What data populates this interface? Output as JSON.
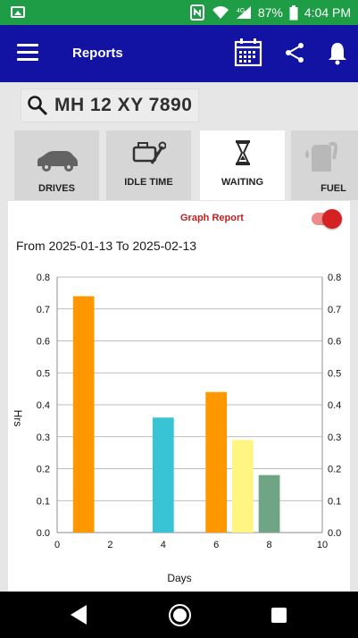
{
  "status_bar": {
    "battery_percent": "87%",
    "time": "4:04 PM",
    "bg_color": "#1f9c46"
  },
  "app_bar": {
    "title": "Reports",
    "bg_color": "#1212a3",
    "icons": [
      "menu-icon",
      "calendar-icon",
      "share-icon",
      "bell-icon"
    ]
  },
  "search": {
    "value": "MH 12 XY 7890"
  },
  "tabs": [
    {
      "label": "DRIVES",
      "icon": "car-icon",
      "active": false
    },
    {
      "label": "IDLE TIME",
      "icon": "engine-wrench-icon",
      "active": false
    },
    {
      "label": "WAITING",
      "icon": "hourglass-icon",
      "active": true
    },
    {
      "label": "FUEL",
      "icon": "fuel-pump-icon",
      "active": false
    }
  ],
  "graph_toggle": {
    "label": "Graph Report",
    "checked": true
  },
  "date_range": "From 2025-01-13 To 2025-02-13",
  "chart_data": {
    "type": "bar",
    "title": "",
    "xlabel": "Days",
    "ylabel": "Hrs",
    "xlim": [
      0,
      10
    ],
    "ylim": [
      0,
      0.8
    ],
    "x_ticks": [
      "0",
      "2",
      "4",
      "6",
      "8",
      "10"
    ],
    "y_ticks": [
      "0.0",
      "0.1",
      "0.2",
      "0.3",
      "0.4",
      "0.5",
      "0.6",
      "0.7",
      "0.8"
    ],
    "bars": [
      {
        "x": 1,
        "value": 0.74,
        "color": "#ff9800"
      },
      {
        "x": 4,
        "value": 0.36,
        "color": "#38c4d4"
      },
      {
        "x": 6,
        "value": 0.44,
        "color": "#ff9800"
      },
      {
        "x": 7,
        "value": 0.29,
        "color": "#fff582"
      },
      {
        "x": 8,
        "value": 0.18,
        "color": "#6fa584"
      }
    ],
    "grid": true
  }
}
